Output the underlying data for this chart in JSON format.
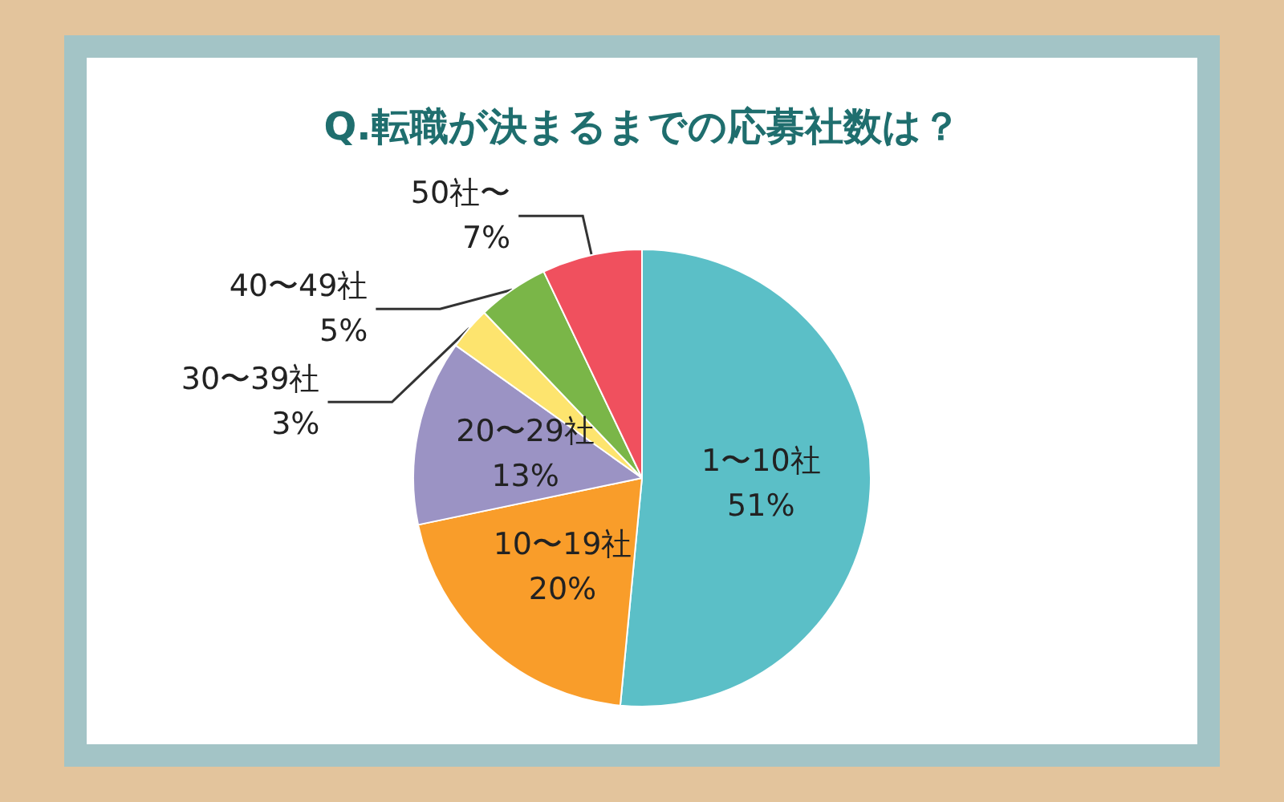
{
  "chart_data": {
    "type": "pie",
    "title": "Q.転職が決まるまでの応募社数は？",
    "categories": [
      "1〜10社",
      "10〜19社",
      "20〜29社",
      "30〜39社",
      "40〜49社",
      "50社〜"
    ],
    "values": [
      51,
      20,
      13,
      3,
      5,
      7
    ],
    "value_labels": [
      "51%",
      "20%",
      "13%",
      "3%",
      "5%",
      "7%"
    ],
    "colors": [
      "#5bbfc7",
      "#f99d2a",
      "#9b93c4",
      "#fde46e",
      "#7ab648",
      "#f0505e"
    ]
  }
}
